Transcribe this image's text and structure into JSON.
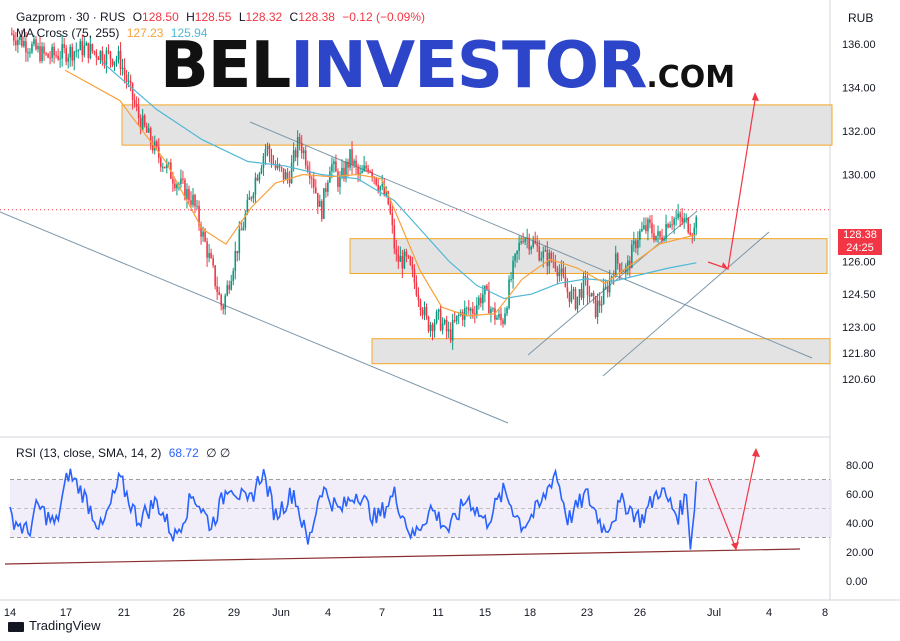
{
  "header": {
    "symbol": "Gazprom · 30 · RUS",
    "open_label": "O",
    "open": "128.50",
    "high_label": "H",
    "high": "128.55",
    "low_label": "L",
    "low": "128.32",
    "close_label": "C",
    "close": "128.38",
    "change": "−0.12 (−0.09%)",
    "ma_label": "MA Cross (75, 255)",
    "ma_fast": "127.23",
    "ma_slow": "125.94",
    "currency": "RUB"
  },
  "rsi_header": {
    "label": "RSI (13, close, SMA, 14, 2)",
    "value": "68.72",
    "extra": "∅ ∅"
  },
  "logo": {
    "bel": "BEL",
    "investor": "INVESTOR",
    "dotcom": ".COM"
  },
  "price_tag": {
    "price": "128.38",
    "countdown": "24:25"
  },
  "footer": {
    "brand": "TradingView"
  },
  "colors": {
    "candle_up": "#089981",
    "candle_down": "#f23645",
    "ma_fast": "#f7a13a",
    "ma_slow": "#4fb8d6",
    "rsi_line": "#2962ff",
    "rsi_band": "#ede7f6",
    "zone_fill": "#e0e0e0",
    "zone_border": "#f5a623",
    "trend_line": "#7c97a8",
    "arrow": "#f23645",
    "support": "#8b2e2e"
  },
  "chart_data": [
    {
      "type": "candlestick",
      "name": "Gazprom · 30",
      "y_axis_ticks": [
        "136.00",
        "134.00",
        "132.00",
        "130.00",
        "126.00",
        "124.50",
        "123.00",
        "121.80",
        "120.60"
      ],
      "x_axis_ticks": [
        "14",
        "17",
        "21",
        "26",
        "29",
        "Jun",
        "4",
        "7",
        "11",
        "15",
        "18",
        "23",
        "26",
        "Jul",
        "4",
        "8"
      ],
      "ylim": [
        120.2,
        137.3
      ],
      "last_price": 128.38,
      "close_path": [
        {
          "d": 0,
          "v": 136.5
        },
        {
          "d": 2,
          "v": 135.4
        },
        {
          "d": 4,
          "v": 135.8
        },
        {
          "d": 6,
          "v": 135.3
        },
        {
          "d": 7,
          "v": 132.7
        },
        {
          "d": 8,
          "v": 131.0
        },
        {
          "d": 9,
          "v": 129.8
        },
        {
          "d": 10,
          "v": 128.8
        },
        {
          "d": 11,
          "v": 125.8
        },
        {
          "d": 11.6,
          "v": 123.8
        },
        {
          "d": 12.3,
          "v": 126.3
        },
        {
          "d": 13.4,
          "v": 129.8
        },
        {
          "d": 14.0,
          "v": 131.3
        },
        {
          "d": 14.5,
          "v": 130.3
        },
        {
          "d": 15.2,
          "v": 129.8
        },
        {
          "d": 15.8,
          "v": 131.6
        },
        {
          "d": 16.5,
          "v": 130.0
        },
        {
          "d": 17.0,
          "v": 128.2
        },
        {
          "d": 17.5,
          "v": 130.6
        },
        {
          "d": 18.0,
          "v": 129.6
        },
        {
          "d": 18.6,
          "v": 130.8
        },
        {
          "d": 19.1,
          "v": 129.8
        },
        {
          "d": 19.6,
          "v": 130.5
        },
        {
          "d": 20.2,
          "v": 129.5
        },
        {
          "d": 20.7,
          "v": 128.6
        },
        {
          "d": 21.1,
          "v": 126.1
        },
        {
          "d": 21.7,
          "v": 126.0
        },
        {
          "d": 22.3,
          "v": 124.6
        },
        {
          "d": 22.8,
          "v": 123.1
        },
        {
          "d": 23.4,
          "v": 123.4
        },
        {
          "d": 24.0,
          "v": 122.6
        },
        {
          "d": 24.6,
          "v": 123.6
        },
        {
          "d": 25.3,
          "v": 123.8
        },
        {
          "d": 25.9,
          "v": 124.6
        },
        {
          "d": 26.4,
          "v": 123.6
        },
        {
          "d": 26.9,
          "v": 123.2
        },
        {
          "d": 27.4,
          "v": 125.3
        },
        {
          "d": 28.0,
          "v": 127.3
        },
        {
          "d": 28.6,
          "v": 126.8
        },
        {
          "d": 29.2,
          "v": 126.2
        },
        {
          "d": 29.8,
          "v": 126.0
        },
        {
          "d": 30.4,
          "v": 124.7
        },
        {
          "d": 30.9,
          "v": 124.2
        },
        {
          "d": 31.4,
          "v": 125.0
        },
        {
          "d": 32.0,
          "v": 123.8
        },
        {
          "d": 32.5,
          "v": 124.5
        },
        {
          "d": 33.1,
          "v": 126.0
        },
        {
          "d": 33.7,
          "v": 125.6
        },
        {
          "d": 34.3,
          "v": 127.2
        },
        {
          "d": 34.9,
          "v": 127.6
        },
        {
          "d": 35.5,
          "v": 127.0
        },
        {
          "d": 36.0,
          "v": 128.0
        },
        {
          "d": 36.6,
          "v": 127.9
        },
        {
          "d": 37.1,
          "v": 127.7
        },
        {
          "d": 37.4,
          "v": 127.4
        },
        {
          "d": 37.5,
          "v": 128.38
        }
      ],
      "ma_fast_path": [
        {
          "d": 3,
          "v": 134.8
        },
        {
          "d": 6,
          "v": 133.4
        },
        {
          "d": 8.5,
          "v": 130.6
        },
        {
          "d": 10.5,
          "v": 127.5
        },
        {
          "d": 11.8,
          "v": 126.8
        },
        {
          "d": 13.2,
          "v": 128.5
        },
        {
          "d": 14.5,
          "v": 129.6
        },
        {
          "d": 16,
          "v": 130.0
        },
        {
          "d": 17.5,
          "v": 129.9
        },
        {
          "d": 19,
          "v": 130.0
        },
        {
          "d": 20.3,
          "v": 129.8
        },
        {
          "d": 21.3,
          "v": 127.8
        },
        {
          "d": 22.4,
          "v": 125.6
        },
        {
          "d": 23.6,
          "v": 123.9
        },
        {
          "d": 25,
          "v": 123.5
        },
        {
          "d": 26.5,
          "v": 123.6
        },
        {
          "d": 28,
          "v": 125.2
        },
        {
          "d": 29.5,
          "v": 126.1
        },
        {
          "d": 31,
          "v": 125.7
        },
        {
          "d": 32.5,
          "v": 125.0
        },
        {
          "d": 34,
          "v": 125.9
        },
        {
          "d": 35.5,
          "v": 126.8
        },
        {
          "d": 37.5,
          "v": 127.23
        }
      ],
      "ma_slow_path": [
        {
          "d": 5,
          "v": 135.2
        },
        {
          "d": 8,
          "v": 133.0
        },
        {
          "d": 10.5,
          "v": 131.6
        },
        {
          "d": 13,
          "v": 130.6
        },
        {
          "d": 15,
          "v": 130.4
        },
        {
          "d": 17,
          "v": 130.0
        },
        {
          "d": 19,
          "v": 129.8
        },
        {
          "d": 21,
          "v": 128.8
        },
        {
          "d": 22.5,
          "v": 127.4
        },
        {
          "d": 24,
          "v": 126.0
        },
        {
          "d": 25.5,
          "v": 124.9
        },
        {
          "d": 27,
          "v": 124.3
        },
        {
          "d": 28.5,
          "v": 124.5
        },
        {
          "d": 30,
          "v": 125.0
        },
        {
          "d": 31.5,
          "v": 125.2
        },
        {
          "d": 33,
          "v": 125.1
        },
        {
          "d": 34.5,
          "v": 125.4
        },
        {
          "d": 36,
          "v": 125.7
        },
        {
          "d": 37.5,
          "v": 125.94
        }
      ],
      "zones": [
        {
          "from": 131.35,
          "to": 133.2
        },
        {
          "from": 125.45,
          "to": 127.05
        },
        {
          "from": 121.3,
          "to": 122.45
        }
      ]
    },
    {
      "type": "line",
      "name": "RSI (13, close, SMA, 14, 2)",
      "y_axis_ticks": [
        "80.00",
        "60.00",
        "40.00",
        "20.00",
        "0.00"
      ],
      "ylim": [
        0,
        90
      ],
      "band": [
        30,
        70
      ],
      "last_value": 68.72,
      "path": [
        {
          "d": 0,
          "v": 45
        },
        {
          "d": 1,
          "v": 33
        },
        {
          "d": 1.5,
          "v": 52
        },
        {
          "d": 2.5,
          "v": 38
        },
        {
          "d": 3.2,
          "v": 75
        },
        {
          "d": 4,
          "v": 60
        },
        {
          "d": 5,
          "v": 35
        },
        {
          "d": 6,
          "v": 70
        },
        {
          "d": 7,
          "v": 42
        },
        {
          "d": 8,
          "v": 55
        },
        {
          "d": 9,
          "v": 30
        },
        {
          "d": 10,
          "v": 60
        },
        {
          "d": 11,
          "v": 38
        },
        {
          "d": 12,
          "v": 68
        },
        {
          "d": 13,
          "v": 52
        },
        {
          "d": 13.8,
          "v": 76
        },
        {
          "d": 14.5,
          "v": 45
        },
        {
          "d": 15.5,
          "v": 62
        },
        {
          "d": 16.3,
          "v": 25
        },
        {
          "d": 17,
          "v": 65
        },
        {
          "d": 18,
          "v": 48
        },
        {
          "d": 19,
          "v": 62
        },
        {
          "d": 20,
          "v": 42
        },
        {
          "d": 21,
          "v": 60
        },
        {
          "d": 22,
          "v": 30
        },
        {
          "d": 23,
          "v": 50
        },
        {
          "d": 24,
          "v": 35
        },
        {
          "d": 25,
          "v": 58
        },
        {
          "d": 26,
          "v": 40
        },
        {
          "d": 27,
          "v": 62
        },
        {
          "d": 28,
          "v": 38
        },
        {
          "d": 29,
          "v": 52
        },
        {
          "d": 29.8,
          "v": 76
        },
        {
          "d": 30.5,
          "v": 42
        },
        {
          "d": 31.5,
          "v": 60
        },
        {
          "d": 32.5,
          "v": 35
        },
        {
          "d": 33.5,
          "v": 55
        },
        {
          "d": 34.5,
          "v": 42
        },
        {
          "d": 35.5,
          "v": 64
        },
        {
          "d": 36.5,
          "v": 45
        },
        {
          "d": 37.0,
          "v": 60
        },
        {
          "d": 37.2,
          "v": 22
        },
        {
          "d": 37.5,
          "v": 68.72
        }
      ]
    }
  ]
}
